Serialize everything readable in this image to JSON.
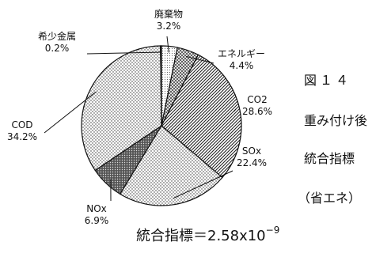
{
  "chart_data": {
    "type": "pie",
    "slices": [
      {
        "label": "廃棄物",
        "value": 3.2,
        "value_label": "3.2%"
      },
      {
        "label": "エネルギー",
        "value": 4.4,
        "value_label": "4.4%"
      },
      {
        "label": "CO2",
        "value": 28.6,
        "value_label": "28.6%"
      },
      {
        "label": "SOx",
        "value": 22.4,
        "value_label": "22.4%"
      },
      {
        "label": "NOx",
        "value": 6.9,
        "value_label": "6.9%"
      },
      {
        "label": "COD",
        "value": 34.2,
        "value_label": "34.2%"
      },
      {
        "label": "希少金属",
        "value": 0.2,
        "value_label": "0.2%"
      }
    ]
  },
  "side": {
    "fig": "図１４",
    "line1": "重み付け後",
    "line2": "統合指標",
    "line3": "（省エネ）"
  },
  "formula": {
    "prefix": "統合指標＝2.58x10",
    "exp": "−9"
  }
}
